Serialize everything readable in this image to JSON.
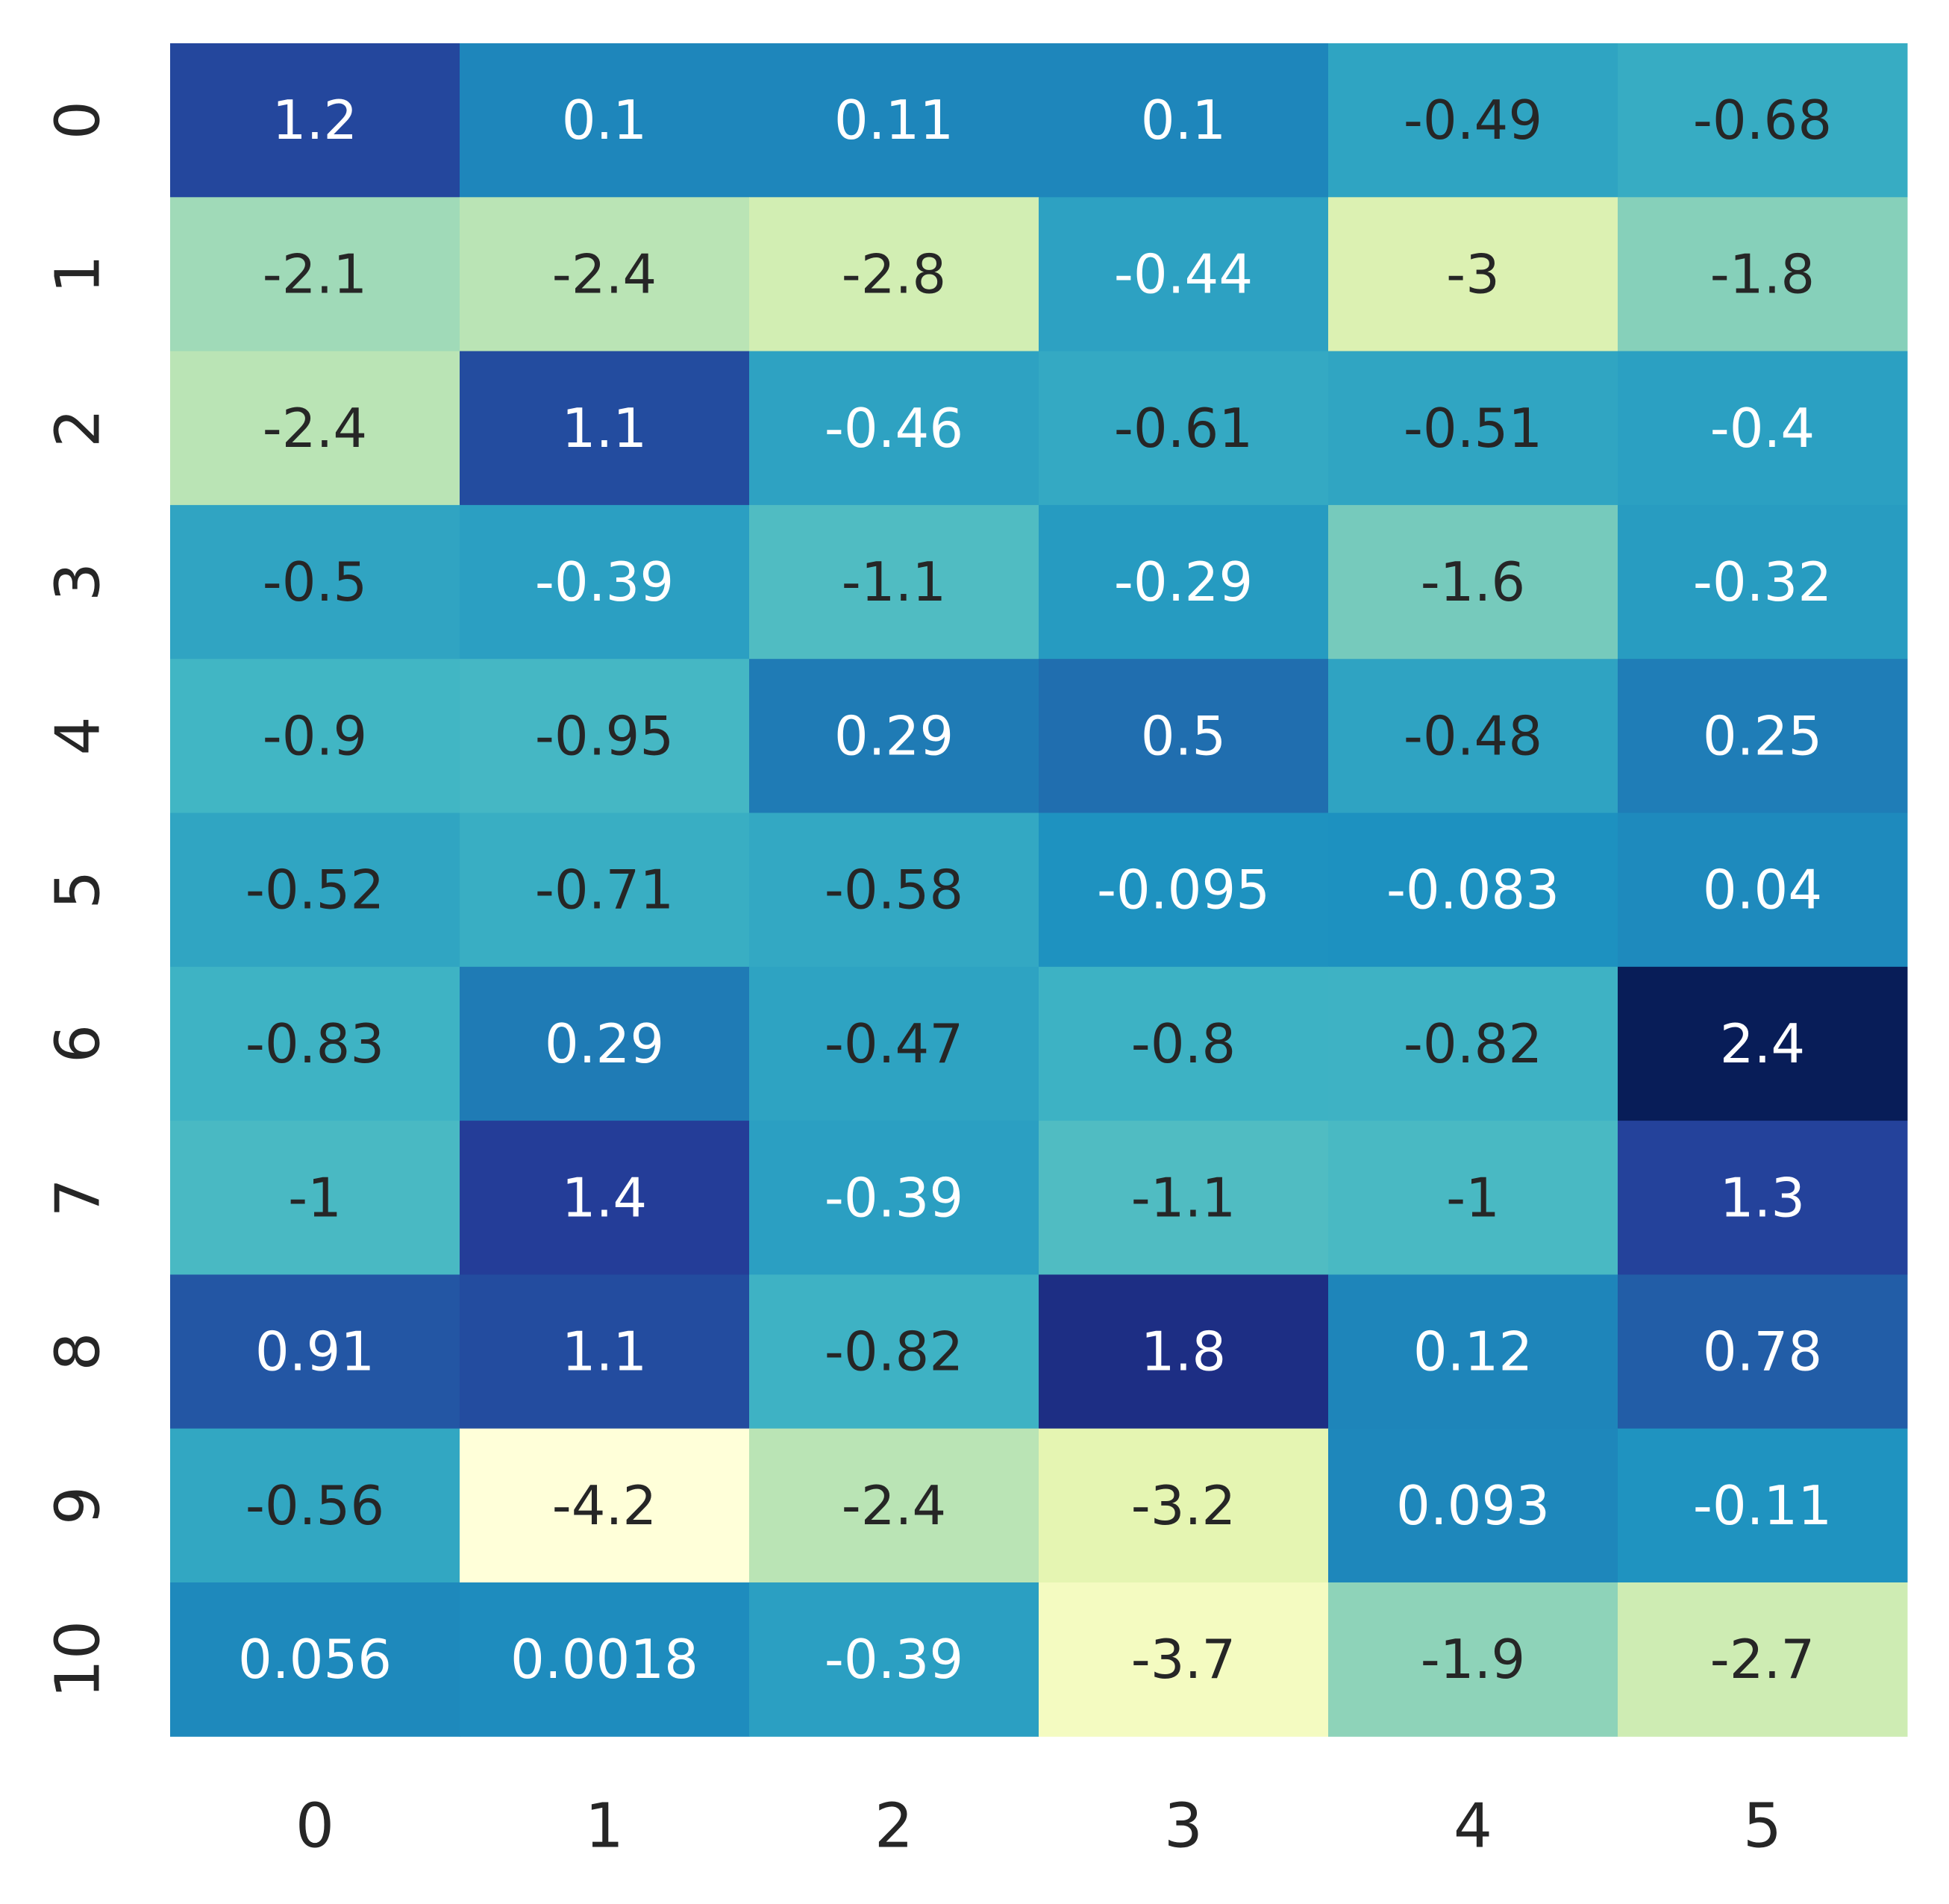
{
  "chart_data": {
    "type": "heatmap",
    "colormap": "YlGnBu",
    "x_categories": [
      "0",
      "1",
      "2",
      "3",
      "4",
      "5"
    ],
    "y_categories": [
      "0",
      "1",
      "2",
      "3",
      "4",
      "5",
      "6",
      "7",
      "8",
      "9",
      "10"
    ],
    "value_range": [
      -4.2,
      2.4
    ],
    "values": [
      [
        1.2,
        0.1,
        0.11,
        0.1,
        -0.49,
        -0.68
      ],
      [
        -2.1,
        -2.4,
        -2.8,
        -0.44,
        -3,
        -1.8
      ],
      [
        -2.4,
        1.1,
        -0.46,
        -0.61,
        -0.51,
        -0.4
      ],
      [
        -0.5,
        -0.39,
        -1.1,
        -0.29,
        -1.6,
        -0.32
      ],
      [
        -0.9,
        -0.95,
        0.29,
        0.5,
        -0.48,
        0.25
      ],
      [
        -0.52,
        -0.71,
        -0.58,
        -0.095,
        -0.083,
        0.04
      ],
      [
        -0.83,
        0.29,
        -0.47,
        -0.8,
        -0.82,
        2.4
      ],
      [
        -1,
        1.4,
        -0.39,
        -1.1,
        -1,
        1.3
      ],
      [
        0.91,
        1.1,
        -0.82,
        1.8,
        0.12,
        0.78
      ],
      [
        -0.56,
        -4.2,
        -2.4,
        -3.2,
        0.093,
        -0.11
      ],
      [
        0.056,
        0.0018,
        -0.39,
        -3.7,
        -1.9,
        -2.7
      ]
    ],
    "annotations": [
      [
        "1.2",
        "0.1",
        "0.11",
        "0.1",
        "-0.49",
        "-0.68"
      ],
      [
        "-2.1",
        "-2.4",
        "-2.8",
        "-0.44",
        "-3",
        "-1.8"
      ],
      [
        "-2.4",
        "1.1",
        "-0.46",
        "-0.61",
        "-0.51",
        "-0.4"
      ],
      [
        "-0.5",
        "-0.39",
        "-1.1",
        "-0.29",
        "-1.6",
        "-0.32"
      ],
      [
        "-0.9",
        "-0.95",
        "0.29",
        "0.5",
        "-0.48",
        "0.25"
      ],
      [
        "-0.52",
        "-0.71",
        "-0.58",
        "-0.095",
        "-0.083",
        "0.04"
      ],
      [
        "-0.83",
        "0.29",
        "-0.47",
        "-0.8",
        "-0.82",
        "2.4"
      ],
      [
        "-1",
        "1.4",
        "-0.39",
        "-1.1",
        "-1",
        "1.3"
      ],
      [
        "0.91",
        "1.1",
        "-0.82",
        "1.8",
        "0.12",
        "0.78"
      ],
      [
        "-0.56",
        "-4.2",
        "-2.4",
        "-3.2",
        "0.093",
        "-0.11"
      ],
      [
        "0.056",
        "0.0018",
        "-0.39",
        "-3.7",
        "-1.9",
        "-2.7"
      ]
    ],
    "colorbar": false,
    "grid": false,
    "title": "",
    "xlabel": "",
    "ylabel": ""
  }
}
